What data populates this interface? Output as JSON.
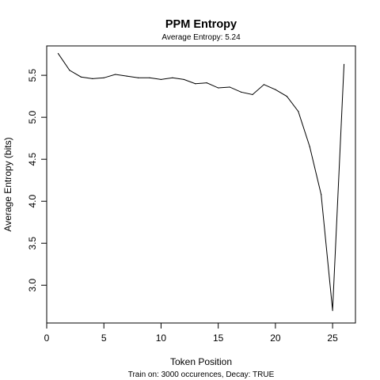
{
  "chart_data": {
    "type": "line",
    "title": "PPM Entropy",
    "subtitle": "Average Entropy: 5.24",
    "xlabel": "Token Position",
    "ylabel": "Average Entropy (bits)",
    "caption": "Train on: 3000 occurences, Decay: TRUE",
    "xlim": [
      0,
      27
    ],
    "ylim": [
      2.55,
      5.85
    ],
    "xticks": [
      "0",
      "5",
      "10",
      "15",
      "20",
      "25"
    ],
    "yticks": [
      "3.0",
      "3.5",
      "4.0",
      "4.5",
      "5.0",
      "5.5"
    ],
    "grid": false,
    "series": [
      {
        "x": [
          1,
          2,
          3,
          4,
          5,
          6,
          7,
          8,
          9,
          10,
          11,
          12,
          13,
          14,
          15,
          16,
          17,
          18,
          19,
          20,
          21,
          22,
          23,
          24,
          25,
          26
        ],
        "values": [
          5.76,
          5.56,
          5.48,
          5.46,
          5.47,
          5.51,
          5.49,
          5.47,
          5.47,
          5.45,
          5.47,
          5.45,
          5.4,
          5.41,
          5.35,
          5.36,
          5.3,
          5.27,
          5.39,
          5.33,
          5.25,
          5.07,
          4.65,
          4.08,
          2.7,
          5.63
        ],
        "color": "#000000"
      }
    ]
  }
}
